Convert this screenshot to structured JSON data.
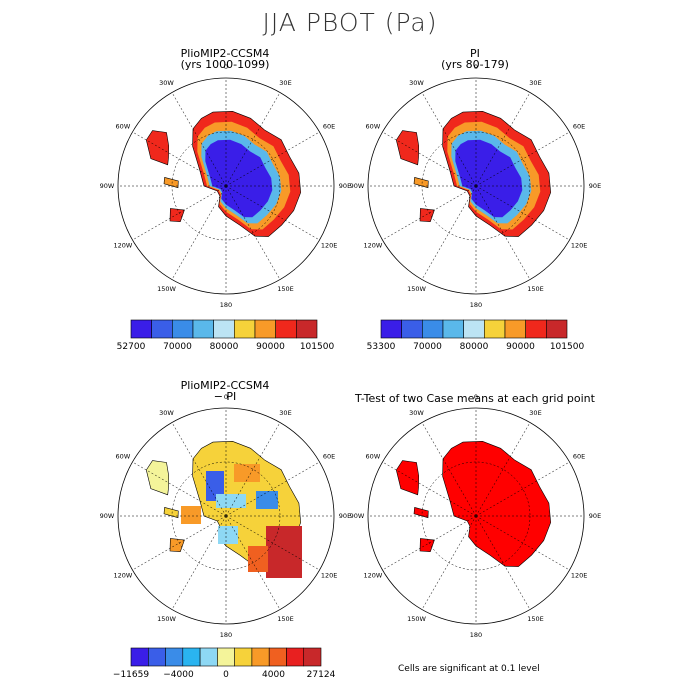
{
  "title": "JJA PBOT (Pa)",
  "panels": [
    {
      "title": "PlioMIP2-CCSM4",
      "subtitle": "(yrs 1000-1099)",
      "colorbar": {
        "labels": [
          "52700",
          "70000",
          "80000",
          "90000",
          "101500"
        ],
        "colors": [
          "#3a1ee8",
          "#3a5ee8",
          "#3a8ce8",
          "#5ab8ea",
          "#bce4f4",
          "#f6d23a",
          "#f89a28",
          "#f0281c",
          "#c8282a"
        ]
      }
    },
    {
      "title": "PI",
      "subtitle": "(yrs 80-179)",
      "colorbar": {
        "labels": [
          "53300",
          "70000",
          "80000",
          "90000",
          "101500"
        ],
        "colors": [
          "#3a1ee8",
          "#3a5ee8",
          "#3a8ce8",
          "#5ab8ea",
          "#bce4f4",
          "#f6d23a",
          "#f89a28",
          "#f0281c",
          "#c8282a"
        ]
      }
    },
    {
      "title": "PlioMIP2-CCSM4",
      "subtitle": "− PI",
      "colorbar": {
        "labels": [
          "−11659",
          "−4000",
          "0",
          "4000",
          "27124"
        ],
        "colors": [
          "#3a1ee8",
          "#3a5ee8",
          "#3a8ce8",
          "#2ab4f0",
          "#8ed8f4",
          "#f4f49a",
          "#f6d23a",
          "#f89a28",
          "#f06020",
          "#e82020",
          "#c8282a"
        ]
      }
    },
    {
      "title": "T-Test of two Case means at each grid point",
      "subtitle": ""
    }
  ],
  "longitude_labels": [
    "0",
    "30E",
    "60E",
    "90E",
    "120E",
    "150E",
    "180",
    "150W",
    "120W",
    "90W",
    "60W",
    "30W"
  ],
  "footnote": "Cells are significant at 0.1 level"
}
